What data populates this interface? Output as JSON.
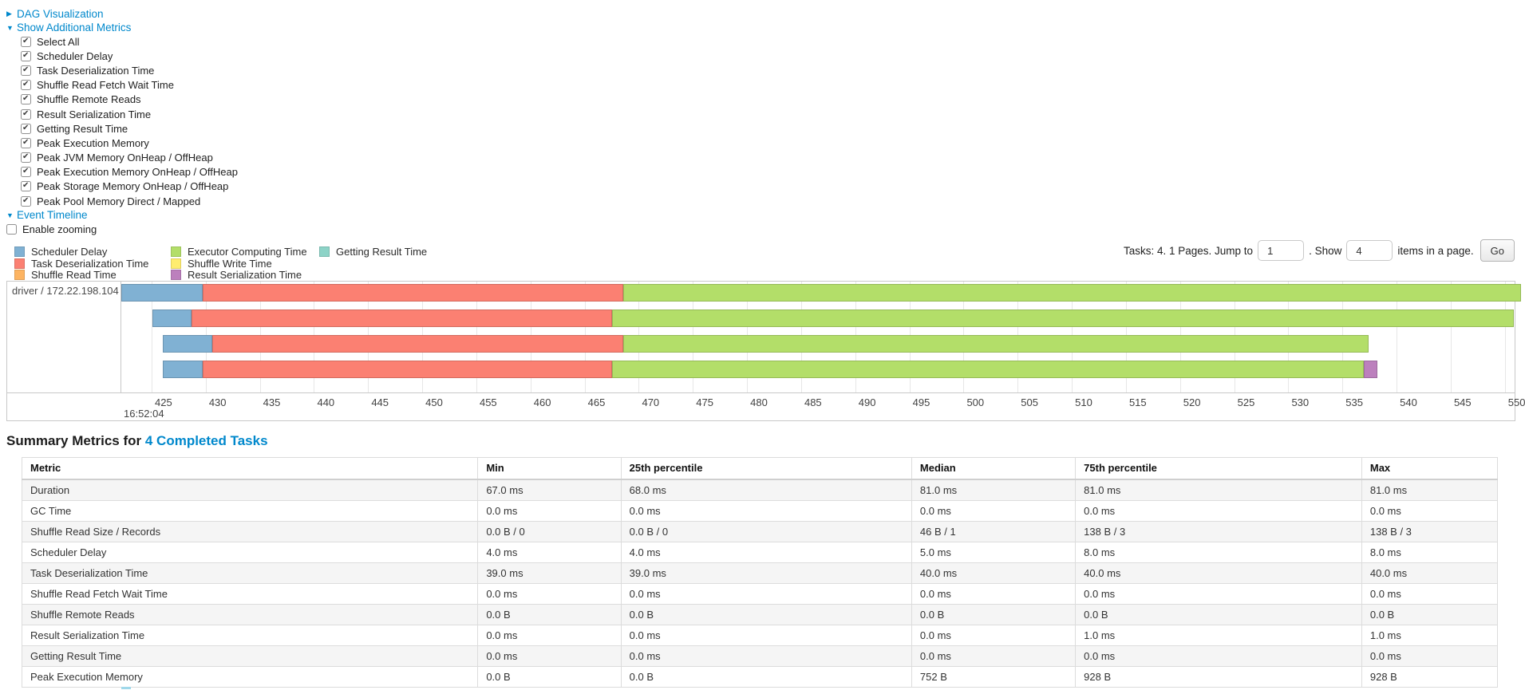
{
  "controls": {
    "dag": {
      "label": "DAG Visualization",
      "state": "collapsed"
    },
    "metrics_toggle": {
      "label": "Show Additional Metrics",
      "state": "expanded"
    },
    "metric_checkboxes": [
      {
        "label": "Select All",
        "checked": true
      },
      {
        "label": "Scheduler Delay",
        "checked": true
      },
      {
        "label": "Task Deserialization Time",
        "checked": true
      },
      {
        "label": "Shuffle Read Fetch Wait Time",
        "checked": true
      },
      {
        "label": "Shuffle Remote Reads",
        "checked": true
      },
      {
        "label": "Result Serialization Time",
        "checked": true
      },
      {
        "label": "Getting Result Time",
        "checked": true
      },
      {
        "label": "Peak Execution Memory",
        "checked": true
      },
      {
        "label": "Peak JVM Memory OnHeap / OffHeap",
        "checked": true
      },
      {
        "label": "Peak Execution Memory OnHeap / OffHeap",
        "checked": true
      },
      {
        "label": "Peak Storage Memory OnHeap / OffHeap",
        "checked": true
      },
      {
        "label": "Peak Pool Memory Direct / Mapped",
        "checked": true
      }
    ],
    "event_timeline": {
      "label": "Event Timeline",
      "state": "expanded"
    },
    "enable_zooming": {
      "label": "Enable zooming",
      "checked": false
    }
  },
  "legend": [
    {
      "key": "scheduler_delay",
      "label": "Scheduler Delay",
      "color": "#80B1D3"
    },
    {
      "key": "task_deserialization",
      "label": "Task Deserialization Time",
      "color": "#FB8072"
    },
    {
      "key": "shuffle_read",
      "label": "Shuffle Read Time",
      "color": "#FDB462"
    },
    {
      "key": "executor_computing",
      "label": "Executor Computing Time",
      "color": "#B3DE69"
    },
    {
      "key": "shuffle_write",
      "label": "Shuffle Write Time",
      "color": "#FFED6F"
    },
    {
      "key": "result_serialization",
      "label": "Result Serialization Time",
      "color": "#BC80BD"
    },
    {
      "key": "getting_result",
      "label": "Getting Result Time",
      "color": "#8DD3C7"
    }
  ],
  "pagination": {
    "tasks_text": "Tasks: 4. 1 Pages. Jump to",
    "jump_value": "1",
    "show_label": ". Show",
    "show_value": "4",
    "items_label": "items in a page.",
    "go_label": "Go"
  },
  "chart_data": {
    "type": "bar",
    "orientation": "horizontal-stacked-timeline",
    "group_label": "driver / 172.22.198.104",
    "axis": {
      "min": 422.2,
      "max": 550.9,
      "tick_start": 425,
      "tick_end": 550,
      "tick_step": 5,
      "major_label": "16:52:04"
    },
    "colors": {
      "scheduler_delay": "#80B1D3",
      "task_deserialization": "#FB8072",
      "shuffle_read": "#FDB462",
      "executor_computing": "#B3DE69",
      "shuffle_write": "#FFED6F",
      "result_serialization": "#BC80BD",
      "getting_result": "#8DD3C7"
    },
    "bars": [
      {
        "segments": [
          {
            "type": "scheduler_delay",
            "start": 422.2,
            "end": 429.7
          },
          {
            "type": "task_deserialization",
            "start": 429.7,
            "end": 468.6
          },
          {
            "type": "executor_computing",
            "start": 468.6,
            "end": 551.5
          }
        ]
      },
      {
        "segments": [
          {
            "type": "scheduler_delay",
            "start": 425.1,
            "end": 428.7
          },
          {
            "type": "task_deserialization",
            "start": 428.7,
            "end": 467.5
          },
          {
            "type": "executor_computing",
            "start": 467.5,
            "end": 550.8
          }
        ]
      },
      {
        "segments": [
          {
            "type": "scheduler_delay",
            "start": 426.0,
            "end": 430.6
          },
          {
            "type": "task_deserialization",
            "start": 430.6,
            "end": 468.6
          },
          {
            "type": "executor_computing",
            "start": 468.6,
            "end": 537.4
          }
        ]
      },
      {
        "segments": [
          {
            "type": "scheduler_delay",
            "start": 426.0,
            "end": 429.7
          },
          {
            "type": "task_deserialization",
            "start": 429.7,
            "end": 467.5
          },
          {
            "type": "executor_computing",
            "start": 467.5,
            "end": 537.0
          },
          {
            "type": "result_serialization",
            "start": 537.0,
            "end": 538.2
          }
        ]
      }
    ]
  },
  "summary": {
    "title": "Summary Metrics for",
    "link": "4 Completed Tasks",
    "headers": [
      "Metric",
      "Min",
      "25th percentile",
      "Median",
      "75th percentile",
      "Max"
    ],
    "col_widths": [
      "30.9%",
      "9.7%",
      "19.7%",
      "11.1%",
      "19.4%",
      "9.2%"
    ],
    "rows": [
      {
        "cells": [
          "Duration",
          "67.0 ms",
          "68.0 ms",
          "81.0 ms",
          "81.0 ms",
          "81.0 ms"
        ],
        "striped": true
      },
      {
        "cells": [
          "GC Time",
          "0.0 ms",
          "0.0 ms",
          "0.0 ms",
          "0.0 ms",
          "0.0 ms"
        ],
        "striped": false
      },
      {
        "cells": [
          "Shuffle Read Size / Records",
          "0.0 B / 0",
          "0.0 B / 0",
          "46 B / 1",
          "138 B / 3",
          "138 B / 3"
        ],
        "striped": true
      },
      {
        "cells": [
          "Scheduler Delay",
          "4.0 ms",
          "4.0 ms",
          "5.0 ms",
          "8.0 ms",
          "8.0 ms"
        ],
        "striped": false
      },
      {
        "cells": [
          "Task Deserialization Time",
          "39.0 ms",
          "39.0 ms",
          "40.0 ms",
          "40.0 ms",
          "40.0 ms"
        ],
        "striped": true
      },
      {
        "cells": [
          "Shuffle Read Fetch Wait Time",
          "0.0 ms",
          "0.0 ms",
          "0.0 ms",
          "0.0 ms",
          "0.0 ms"
        ],
        "striped": false
      },
      {
        "cells": [
          "Shuffle Remote Reads",
          "0.0 B",
          "0.0 B",
          "0.0 B",
          "0.0 B",
          "0.0 B"
        ],
        "striped": true
      },
      {
        "cells": [
          "Result Serialization Time",
          "0.0 ms",
          "0.0 ms",
          "0.0 ms",
          "1.0 ms",
          "1.0 ms"
        ],
        "striped": false
      },
      {
        "cells": [
          "Getting Result Time",
          "0.0 ms",
          "0.0 ms",
          "0.0 ms",
          "0.0 ms",
          "0.0 ms"
        ],
        "striped": true
      },
      {
        "cells": [
          "Peak Execution Memory",
          "0.0 B",
          "0.0 B",
          "752 B",
          "928 B",
          "928 B"
        ],
        "striped": false
      }
    ]
  }
}
